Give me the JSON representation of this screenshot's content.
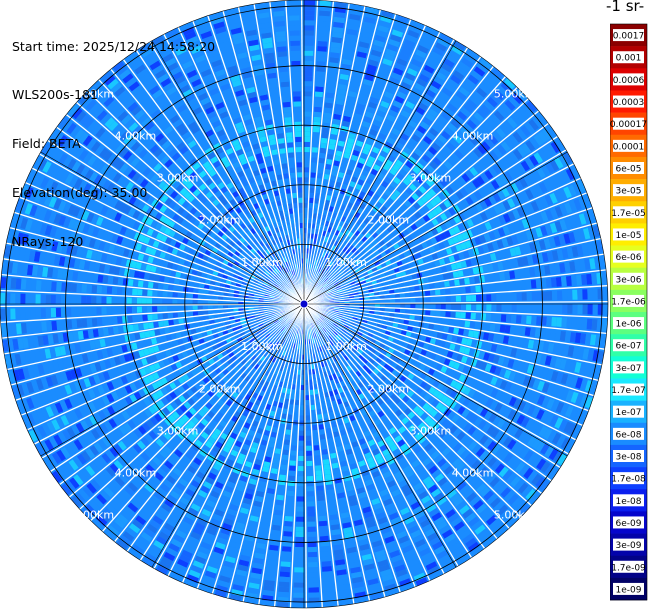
{
  "header": {
    "start_time": "Start time: 2025/12/24 14:58:20",
    "instrument": "WLS200s-181",
    "field": "Field: BETA",
    "elevation": "Elevation(deg): 35.00",
    "nrays": "NRays: 120"
  },
  "chart_data": {
    "type": "heatmap",
    "projection": "polar (PPI scan)",
    "rays": 120,
    "range_rings_km": [
      1,
      2,
      3,
      4,
      5
    ],
    "range_labels": [
      "1.00km",
      "2.00km",
      "3.00km",
      "4.00km",
      "5.00km"
    ],
    "max_range_km": 5.1,
    "dominant_value_band": "6e-08 to 1.7e-07",
    "colorbar": {
      "title": "-1 sr-",
      "scale": "log",
      "labels": [
        "0.0017",
        "0.001",
        "0.0006",
        "0.0003",
        "0.00017",
        "0.0001",
        "6e-05",
        "3e-05",
        "1.7e-05",
        "1e-05",
        "6e-06",
        "3e-06",
        "1.7e-06",
        "1e-06",
        "6e-07",
        "3e-07",
        "1.7e-07",
        "1e-07",
        "6e-08",
        "3e-08",
        "1.7e-08",
        "1e-08",
        "6e-09",
        "3e-09",
        "1.7e-09",
        "1e-09"
      ],
      "colors": [
        "#8b0000",
        "#b30000",
        "#dd0000",
        "#ff1a00",
        "#ff4500",
        "#ff6a00",
        "#ff8c00",
        "#ffad00",
        "#ffd000",
        "#ffee00",
        "#e6ff20",
        "#b8ff40",
        "#8aff60",
        "#5cff80",
        "#30ffa8",
        "#12ffd6",
        "#19e8ff",
        "#1ab2ff",
        "#1a8cff",
        "#1565ff",
        "#0d40ff",
        "#0a1eee",
        "#0505cc",
        "#0303aa",
        "#020288",
        "#010166"
      ]
    }
  }
}
